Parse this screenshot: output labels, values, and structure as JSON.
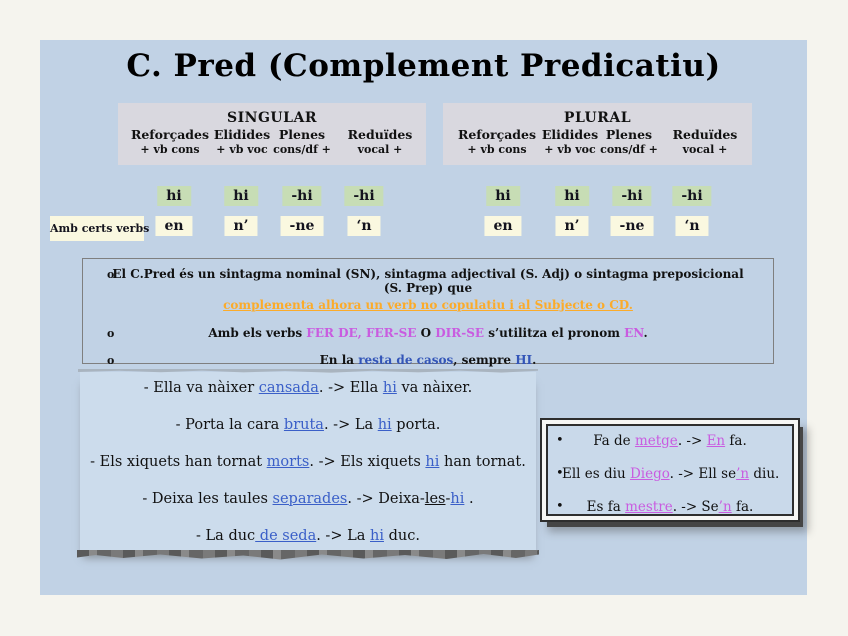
{
  "title": "C. Pred (Complement Predicatiu)",
  "row_label": "Amb certs verbs",
  "colors": {
    "panel_bg": "#c1d2e5",
    "header_bg": "#d9d8df",
    "green_cell": "#c7ddb5",
    "cream_cell": "#faf8e0",
    "orange_link": "#fbab2a",
    "magenta": "#c95ce0",
    "blue_link": "#3a5fc8",
    "blue_text": "#3355b8"
  },
  "tables": [
    {
      "title": "SINGULAR",
      "columns": [
        {
          "header": "Reforçades",
          "subheader": "+ vb cons",
          "row1": "hi",
          "row2": "en"
        },
        {
          "header": "Elidides",
          "subheader": "+ vb voc",
          "row1": "hi",
          "row2": "n’"
        },
        {
          "header": "Plenes",
          "subheader": "cons/df +",
          "row1": "-hi",
          "row2": "-ne"
        },
        {
          "header": "Reduïdes",
          "subheader": "vocal +",
          "row1": "-hi",
          "row2": "‘n"
        }
      ]
    },
    {
      "title": "PLURAL",
      "columns": [
        {
          "header": "Reforçades",
          "subheader": "+ vb cons",
          "row1": "hi",
          "row2": "en"
        },
        {
          "header": "Elidides",
          "subheader": "+ vb voc",
          "row1": "hi",
          "row2": "n’"
        },
        {
          "header": "Plenes",
          "subheader": "cons/df +",
          "row1": "-hi",
          "row2": "-ne"
        },
        {
          "header": "Reduïdes",
          "subheader": "vocal +",
          "row1": "-hi",
          "row2": "‘n"
        }
      ]
    }
  ],
  "info": {
    "bullets": [
      {
        "marker": "o",
        "segments": [
          {
            "t": "El C.Pred és un sintagma nominal (SN), sintagma adjectival (S. Adj) o sintagma preposicional (S. Prep) que ",
            "s": "plain"
          },
          {
            "t": "complementa alhora un verb no copulatiu i al Subjecte o CD.",
            "s": "orange"
          }
        ]
      },
      {
        "marker": "o",
        "segments": [
          {
            "t": "Amb els verbs ",
            "s": "plain"
          },
          {
            "t": "FER DE, FER-SE",
            "s": "magenta"
          },
          {
            "t": " O ",
            "s": "plain"
          },
          {
            "t": "DIR-SE",
            "s": "magenta"
          },
          {
            "t": " s’utilitza el pronom ",
            "s": "plain"
          },
          {
            "t": "EN",
            "s": "magenta"
          },
          {
            "t": ".",
            "s": "plain"
          }
        ]
      },
      {
        "marker": "o",
        "segments": [
          {
            "t": "En la ",
            "s": "plain"
          },
          {
            "t": "resta de casos",
            "s": "blue"
          },
          {
            "t": ", sempre ",
            "s": "plain"
          },
          {
            "t": "HI",
            "s": "blue"
          },
          {
            "t": ".",
            "s": "plain"
          }
        ]
      }
    ]
  },
  "examples_left": {
    "lines": [
      {
        "segments": [
          {
            "t": "- Ella va nàixer ",
            "s": "plain"
          },
          {
            "t": "cansada",
            "s": "blue-u"
          },
          {
            "t": ". -> Ella ",
            "s": "plain"
          },
          {
            "t": "hi",
            "s": "blue-u"
          },
          {
            "t": " va nàixer.",
            "s": "plain"
          }
        ]
      },
      {
        "segments": [
          {
            "t": "- Porta la cara ",
            "s": "plain"
          },
          {
            "t": "bruta",
            "s": "blue-u"
          },
          {
            "t": ". -> La ",
            "s": "plain"
          },
          {
            "t": "hi",
            "s": "blue-u"
          },
          {
            "t": " porta.",
            "s": "plain"
          }
        ]
      },
      {
        "segments": [
          {
            "t": "- Els xiquets han tornat ",
            "s": "plain"
          },
          {
            "t": "morts",
            "s": "blue-u"
          },
          {
            "t": ". -> Els xiquets ",
            "s": "plain"
          },
          {
            "t": "hi",
            "s": "blue-u"
          },
          {
            "t": " han tornat.",
            "s": "plain"
          }
        ]
      },
      {
        "segments": [
          {
            "t": "- Deixa les taules ",
            "s": "plain"
          },
          {
            "t": "separades",
            "s": "blue-u"
          },
          {
            "t": ". -> Deixa-",
            "s": "plain"
          },
          {
            "t": "les",
            "s": "black-u"
          },
          {
            "t": "-",
            "s": "plain"
          },
          {
            "t": "hi",
            "s": "blue-u"
          },
          {
            "t": " .",
            "s": "plain"
          }
        ]
      },
      {
        "segments": [
          {
            "t": "- La duc",
            "s": "plain"
          },
          {
            "t": " de seda",
            "s": "blue-u"
          },
          {
            "t": ". -> La ",
            "s": "plain"
          },
          {
            "t": "hi",
            "s": "blue-u"
          },
          {
            "t": " duc.",
            "s": "plain"
          }
        ]
      }
    ]
  },
  "examples_right": {
    "lines": [
      {
        "marker": "•",
        "segments": [
          {
            "t": "Fa de ",
            "s": "plain"
          },
          {
            "t": "metge",
            "s": "magenta-u"
          },
          {
            "t": ". -> ",
            "s": "plain"
          },
          {
            "t": "En",
            "s": "magenta-u"
          },
          {
            "t": " fa.",
            "s": "plain"
          }
        ]
      },
      {
        "marker": "•",
        "segments": [
          {
            "t": "Ell es diu ",
            "s": "plain"
          },
          {
            "t": "Diego",
            "s": "magenta-u"
          },
          {
            "t": ". -> Ell se",
            "s": "plain"
          },
          {
            "t": "’n",
            "s": "magenta-u"
          },
          {
            "t": " diu.",
            "s": "plain"
          }
        ]
      },
      {
        "marker": "•",
        "segments": [
          {
            "t": "Es fa ",
            "s": "plain"
          },
          {
            "t": "mestre",
            "s": "magenta-u"
          },
          {
            "t": ". -> Se",
            "s": "plain"
          },
          {
            "t": "’n",
            "s": "magenta-u"
          },
          {
            "t": " fa.",
            "s": "plain"
          }
        ]
      }
    ]
  }
}
